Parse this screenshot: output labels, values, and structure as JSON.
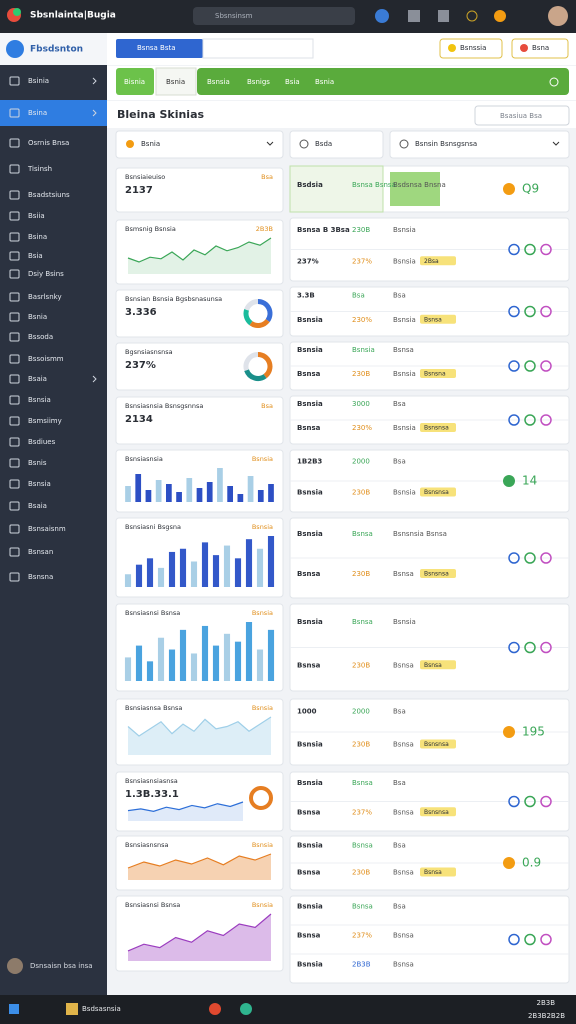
{
  "topbar": {
    "title": "Sbsnlainta|Bugia",
    "search": "Sbsnsinsm"
  },
  "sidebar": {
    "brand": "Fbsdsnton",
    "active": 1,
    "user": "Dsnsaisn bsa insa",
    "items": [
      "Bsinia",
      "Bsina",
      "Osrnis Bnsa",
      "Tisinsh",
      "Bsadstsiuns",
      "Bsiia",
      "Bsina",
      "Bsia",
      "Dsiy Bsins",
      "Basrlsnky",
      "Bsnia",
      "Bssoda",
      "Bssoismm",
      "Bsaia",
      "Bsnsia",
      "Bsmsiimy",
      "Bsdiues",
      "Bsnis",
      "Bsnsia",
      "Bsaia",
      "Bsnsaisnm",
      "Bsnsan",
      "Bsnsna"
    ]
  },
  "toolbar": {
    "primary": "Bsnsa Bsta",
    "right": [
      "Bsnssia",
      "Bsna"
    ]
  },
  "tabs": {
    "items": [
      "Bisnia",
      "Bsnia",
      "Bsnsia",
      "Bsnigs",
      "Bsia",
      "Bsnia"
    ],
    "active": 0
  },
  "heading": {
    "title": "Bleina Skinias",
    "search": "Bsasiua Bsa"
  },
  "filters": [
    "Bsnia",
    "Bsda",
    "Bsnsin Bsnsgsnsa"
  ],
  "cards": [
    {
      "title": "Bsnsiaieuiso",
      "value": "2137",
      "note": "Bsa"
    },
    {
      "title": "Bsmsnig Bsnsia",
      "note": "2B3B",
      "chart": "line",
      "color": "#3aa657",
      "values": [
        40,
        30,
        42,
        38,
        55,
        35,
        60,
        48,
        70,
        58,
        66,
        80,
        72,
        90
      ]
    },
    {
      "title": "Bsnsian Bsnsia Bgsbsnasunsa",
      "value": "3.336",
      "chart": "donut",
      "colors": [
        "#3a6fd8",
        "#e67e22",
        "#1abc9c",
        "#dfe3ea"
      ],
      "values": [
        35,
        25,
        20,
        20
      ]
    },
    {
      "title": "Bgsnsiasnsnsa",
      "value": "237%",
      "chart": "donut",
      "colors": [
        "#e67e22",
        "#1a8f8a",
        "#dfe3ea"
      ],
      "values": [
        40,
        30,
        30
      ]
    },
    {
      "title": "Bsnsiasnsia Bsnsgsnnsa",
      "value": "2134",
      "note": "Bsa"
    },
    {
      "title": "Bsnsiasnsia",
      "note": "Bsnsia",
      "chart": "bars",
      "color": "#2d4fc4",
      "values": [
        40,
        70,
        30,
        55,
        45,
        25,
        60,
        35,
        50,
        85,
        40,
        20,
        65,
        30,
        45
      ]
    },
    {
      "title": "Bsnsiasni Bsgsna",
      "note": "Bsnsia",
      "chart": "bars",
      "color": "#3358c9",
      "values": [
        20,
        35,
        45,
        30,
        55,
        60,
        40,
        70,
        50,
        65,
        45,
        75,
        60,
        80
      ]
    },
    {
      "title": "Bsnsiasnsi Bsnsa",
      "note": "Bsnsia",
      "chart": "bars",
      "color": "#4aa3df",
      "values": [
        30,
        45,
        25,
        55,
        40,
        65,
        35,
        70,
        45,
        60,
        50,
        75,
        40,
        65
      ]
    },
    {
      "title": "Bsnsiasnsa Bsnsa",
      "note": "Bsnsia",
      "chart": "area",
      "color": "#9fcfe8",
      "values": [
        60,
        40,
        55,
        70,
        45,
        65,
        50,
        75,
        55,
        60,
        70,
        50,
        65,
        80
      ]
    },
    {
      "title": "Bsnsiasnsiasnsa",
      "value": "1.3B.33.1",
      "chart": "line",
      "color": "#2d6fd8",
      "values": [
        30,
        35,
        28,
        40,
        33,
        45,
        38,
        50,
        42,
        55
      ]
    },
    {
      "title": "Bsnsiasnsnsa",
      "note": "Bsnsia",
      "chart": "area",
      "color": "#e67e22",
      "values": [
        30,
        45,
        35,
        50,
        40,
        55,
        38,
        60,
        50,
        65
      ]
    },
    {
      "title": "Bsnsiasnsi Bsnsa",
      "note": "Bsnsia",
      "chart": "area",
      "color": "#9b3dbf",
      "values": [
        15,
        25,
        20,
        35,
        28,
        45,
        38,
        55,
        50,
        70
      ]
    }
  ],
  "blocks": [
    {
      "rows": [
        {
          "a": "Bsdsia",
          "n": "Bsnsa Bsnsa",
          "t": "Bsdsnsa Bnsna"
        }
      ],
      "big": "Q9"
    },
    {
      "rows": [
        {
          "a": "Bsnsa B 3Bsa",
          "n": "230B",
          "t": "Bsnsia"
        },
        {
          "a": "237%",
          "n": "237%",
          "t": "Bsnsia",
          "g": "2Bsa"
        }
      ]
    },
    {
      "rows": [
        {
          "a": "3.3B",
          "n": "Bsa",
          "t": "Bsa"
        },
        {
          "a": "Bsnsia",
          "n": "230%",
          "t": "Bsnsia",
          "g": "Bsnsa"
        }
      ]
    },
    {
      "rows": [
        {
          "a": "Bsnsia",
          "n": "Bsnsia",
          "t": "Bsnsa"
        },
        {
          "a": "Bsnsa",
          "n": "230B",
          "t": "Bsnsia",
          "g": "Bsnsna"
        }
      ]
    },
    {
      "rows": [
        {
          "a": "Bsnsia",
          "n": "3000",
          "t": "Bsa"
        },
        {
          "a": "Bsnsa",
          "n": "230%",
          "t": "Bsnsia",
          "g": "Bsnsnsa"
        }
      ]
    },
    {
      "rows": [
        {
          "a": "1B2B3",
          "n": "2000",
          "t": "Bsa"
        },
        {
          "a": "Bsnsia",
          "n": "230B",
          "t": "Bsnsia",
          "g": "Bsnsnsa"
        }
      ],
      "big": "14"
    },
    {
      "rows": [
        {
          "a": "Bsnsia",
          "n": "Bsnsa",
          "t": "Bsnsnsia Bsnsa"
        },
        {
          "a": "Bsnsa",
          "n": "230B",
          "t": "Bsnsa",
          "g": "Bsnsnsa"
        }
      ]
    },
    {
      "rows": [
        {
          "a": "Bsnsia",
          "n": "Bsnsa",
          "t": "Bsnsia"
        },
        {
          "a": "Bsnsa",
          "n": "230B",
          "t": "Bsnsa",
          "g": "Bsnsa"
        }
      ]
    },
    {
      "rows": [
        {
          "a": "1000",
          "n": "2000",
          "t": "Bsa"
        },
        {
          "a": "Bsnsia",
          "n": "230B",
          "t": "Bsnsa",
          "g": "Bsnsnsa"
        }
      ],
      "big": "195"
    },
    {
      "rows": [
        {
          "a": "Bsnsia",
          "n": "Bsnsa",
          "t": "Bsa"
        },
        {
          "a": "Bsnsa",
          "n": "237%",
          "t": "Bsnsa",
          "g": "Bsnsnsa"
        }
      ]
    },
    {
      "rows": [
        {
          "a": "Bsnsia",
          "n": "Bsnsa",
          "t": "Bsa"
        },
        {
          "a": "Bsnsa",
          "n": "230B",
          "t": "Bsnsa",
          "g": "Bsnsa"
        }
      ],
      "big": "0.9"
    },
    {
      "rows": [
        {
          "a": "Bsnsia",
          "n": "Bsnsa",
          "t": "Bsa"
        },
        {
          "a": "Bsnsa",
          "n": "237%",
          "t": "Bsnsa"
        },
        {
          "a": "Bsnsia",
          "n": "2B3B",
          "t": "Bsnsa"
        }
      ]
    }
  ],
  "taskbar": {
    "app": "Bsdsasnsia",
    "time": "2B3B",
    "date": "2B3B2B2B"
  }
}
